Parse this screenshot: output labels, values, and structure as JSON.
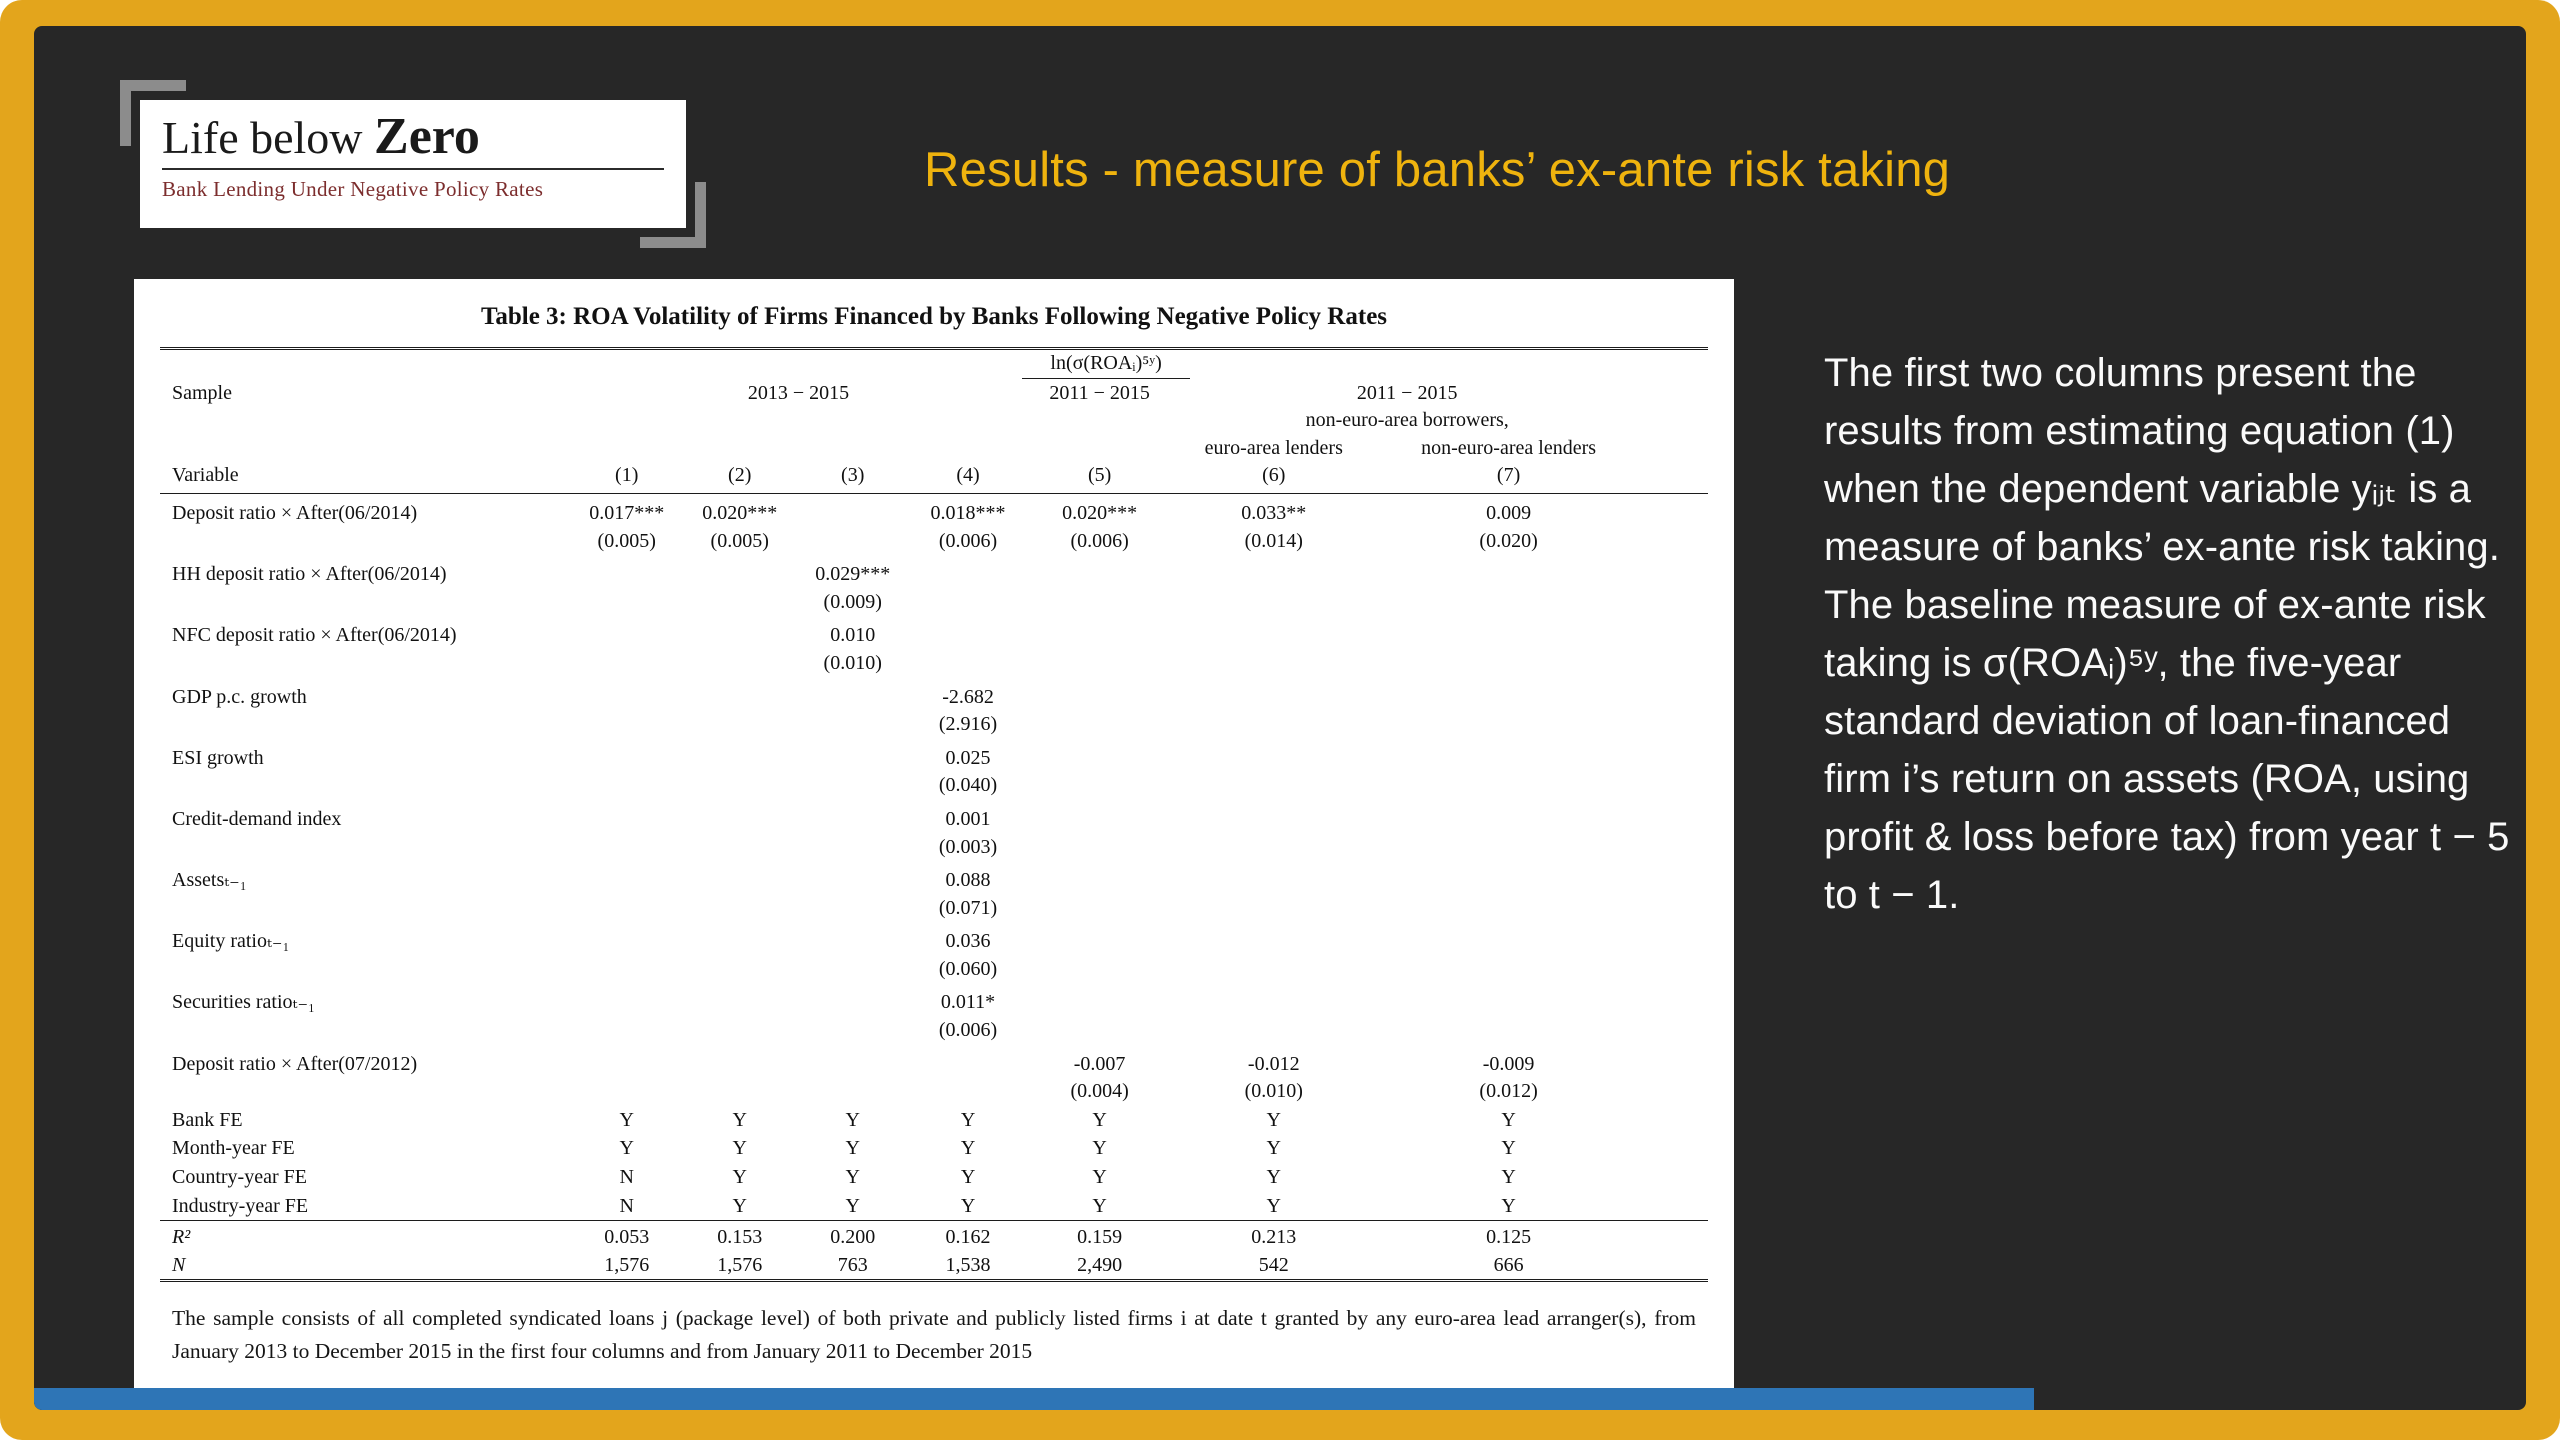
{
  "colors": {
    "gold": "#E3A51C",
    "title_gold": "#EFB30E",
    "dark_bg": "#272727",
    "panel_bg": "#FFFFFF",
    "blue_strip": "#2E75B6",
    "logo_subtitle": "#7C2D2D"
  },
  "logo": {
    "title_regular": "Life below",
    "title_bold": "Zero",
    "subtitle": "Bank Lending Under Negative Policy Rates"
  },
  "header": {
    "title": "Results - measure of banks’ ex-ante risk taking"
  },
  "table": {
    "label": "Table 3:",
    "title": "ROA Volatility of Firms Financed by Banks Following Negative Policy Rates",
    "dep_var_header": "ln(σ(ROAᵢ)⁵ʸ)",
    "sample_label": "Sample",
    "sample_groups": [
      {
        "text": "2013 − 2015",
        "span": 4
      },
      {
        "text": "2011 − 2015",
        "span": 1
      },
      {
        "text": "2011 − 2015",
        "span": 2
      }
    ],
    "subgroup_note": "non-euro-area borrowers,",
    "subgroup_cols": [
      "euro-area lenders",
      "non-euro-area lenders"
    ],
    "variable_label": "Variable",
    "col_numbers": [
      "(1)",
      "(2)",
      "(3)",
      "(4)",
      "(5)",
      "(6)",
      "(7)"
    ],
    "coef_rows": [
      {
        "label": "Deposit ratio × After(06/2014)",
        "coef": [
          "0.017***",
          "0.020***",
          "",
          "0.018***",
          "0.020***",
          "0.033**",
          "0.009"
        ],
        "se": [
          "(0.005)",
          "(0.005)",
          "",
          "(0.006)",
          "(0.006)",
          "(0.014)",
          "(0.020)"
        ]
      },
      {
        "label": "HH deposit ratio × After(06/2014)",
        "coef": [
          "",
          "",
          "0.029***",
          "",
          "",
          "",
          ""
        ],
        "se": [
          "",
          "",
          "(0.009)",
          "",
          "",
          "",
          ""
        ]
      },
      {
        "label": "NFC deposit ratio × After(06/2014)",
        "coef": [
          "",
          "",
          "0.010",
          "",
          "",
          "",
          ""
        ],
        "se": [
          "",
          "",
          "(0.010)",
          "",
          "",
          "",
          ""
        ]
      },
      {
        "label": "GDP p.c. growth",
        "coef": [
          "",
          "",
          "",
          "-2.682",
          "",
          "",
          ""
        ],
        "se": [
          "",
          "",
          "",
          "(2.916)",
          "",
          "",
          ""
        ]
      },
      {
        "label": "ESI growth",
        "coef": [
          "",
          "",
          "",
          "0.025",
          "",
          "",
          ""
        ],
        "se": [
          "",
          "",
          "",
          "(0.040)",
          "",
          "",
          ""
        ]
      },
      {
        "label": "Credit-demand index",
        "coef": [
          "",
          "",
          "",
          "0.001",
          "",
          "",
          ""
        ],
        "se": [
          "",
          "",
          "",
          "(0.003)",
          "",
          "",
          ""
        ]
      },
      {
        "label": "Assetsₜ₋₁",
        "coef": [
          "",
          "",
          "",
          "0.088",
          "",
          "",
          ""
        ],
        "se": [
          "",
          "",
          "",
          "(0.071)",
          "",
          "",
          ""
        ]
      },
      {
        "label": "Equity ratioₜ₋₁",
        "coef": [
          "",
          "",
          "",
          "0.036",
          "",
          "",
          ""
        ],
        "se": [
          "",
          "",
          "",
          "(0.060)",
          "",
          "",
          ""
        ]
      },
      {
        "label": "Securities ratioₜ₋₁",
        "coef": [
          "",
          "",
          "",
          "0.011*",
          "",
          "",
          ""
        ],
        "se": [
          "",
          "",
          "",
          "(0.006)",
          "",
          "",
          ""
        ]
      },
      {
        "label": "Deposit ratio × After(07/2012)",
        "coef": [
          "",
          "",
          "",
          "",
          "-0.007",
          "-0.012",
          "-0.009"
        ],
        "se": [
          "",
          "",
          "",
          "",
          "(0.004)",
          "(0.010)",
          "(0.012)"
        ]
      }
    ],
    "fe_rows": [
      {
        "label": "Bank FE",
        "values": [
          "Y",
          "Y",
          "Y",
          "Y",
          "Y",
          "Y",
          "Y"
        ]
      },
      {
        "label": "Month-year FE",
        "values": [
          "Y",
          "Y",
          "Y",
          "Y",
          "Y",
          "Y",
          "Y"
        ]
      },
      {
        "label": "Country-year FE",
        "values": [
          "N",
          "Y",
          "Y",
          "Y",
          "Y",
          "Y",
          "Y"
        ]
      },
      {
        "label": "Industry-year FE",
        "values": [
          "N",
          "Y",
          "Y",
          "Y",
          "Y",
          "Y",
          "Y"
        ]
      }
    ],
    "stat_rows": [
      {
        "label": "R²",
        "values": [
          "0.053",
          "0.153",
          "0.200",
          "0.162",
          "0.159",
          "0.213",
          "0.125"
        ]
      },
      {
        "label": "N",
        "values": [
          "1,576",
          "1,576",
          "763",
          "1,538",
          "2,490",
          "542",
          "666"
        ]
      }
    ],
    "footnote": "The sample consists of all completed syndicated loans j (package level) of both private and publicly listed firms i at date t granted by any euro-area lead arranger(s), from January 2013 to December 2015 in the first four columns and from January 2011 to December 2015"
  },
  "commentary": {
    "text": "The first two columns present the results from estimating equation (1) when the dependent variable yᵢⱼₜ is a measure of banks’ ex-ante risk taking. The baseline measure of ex-ante risk taking is σ(ROAᵢ)⁵ʸ, the five-year standard deviation of loan-financed firm i’s return on assets (ROA, using profit & loss before tax) from year t − 5 to t − 1."
  }
}
